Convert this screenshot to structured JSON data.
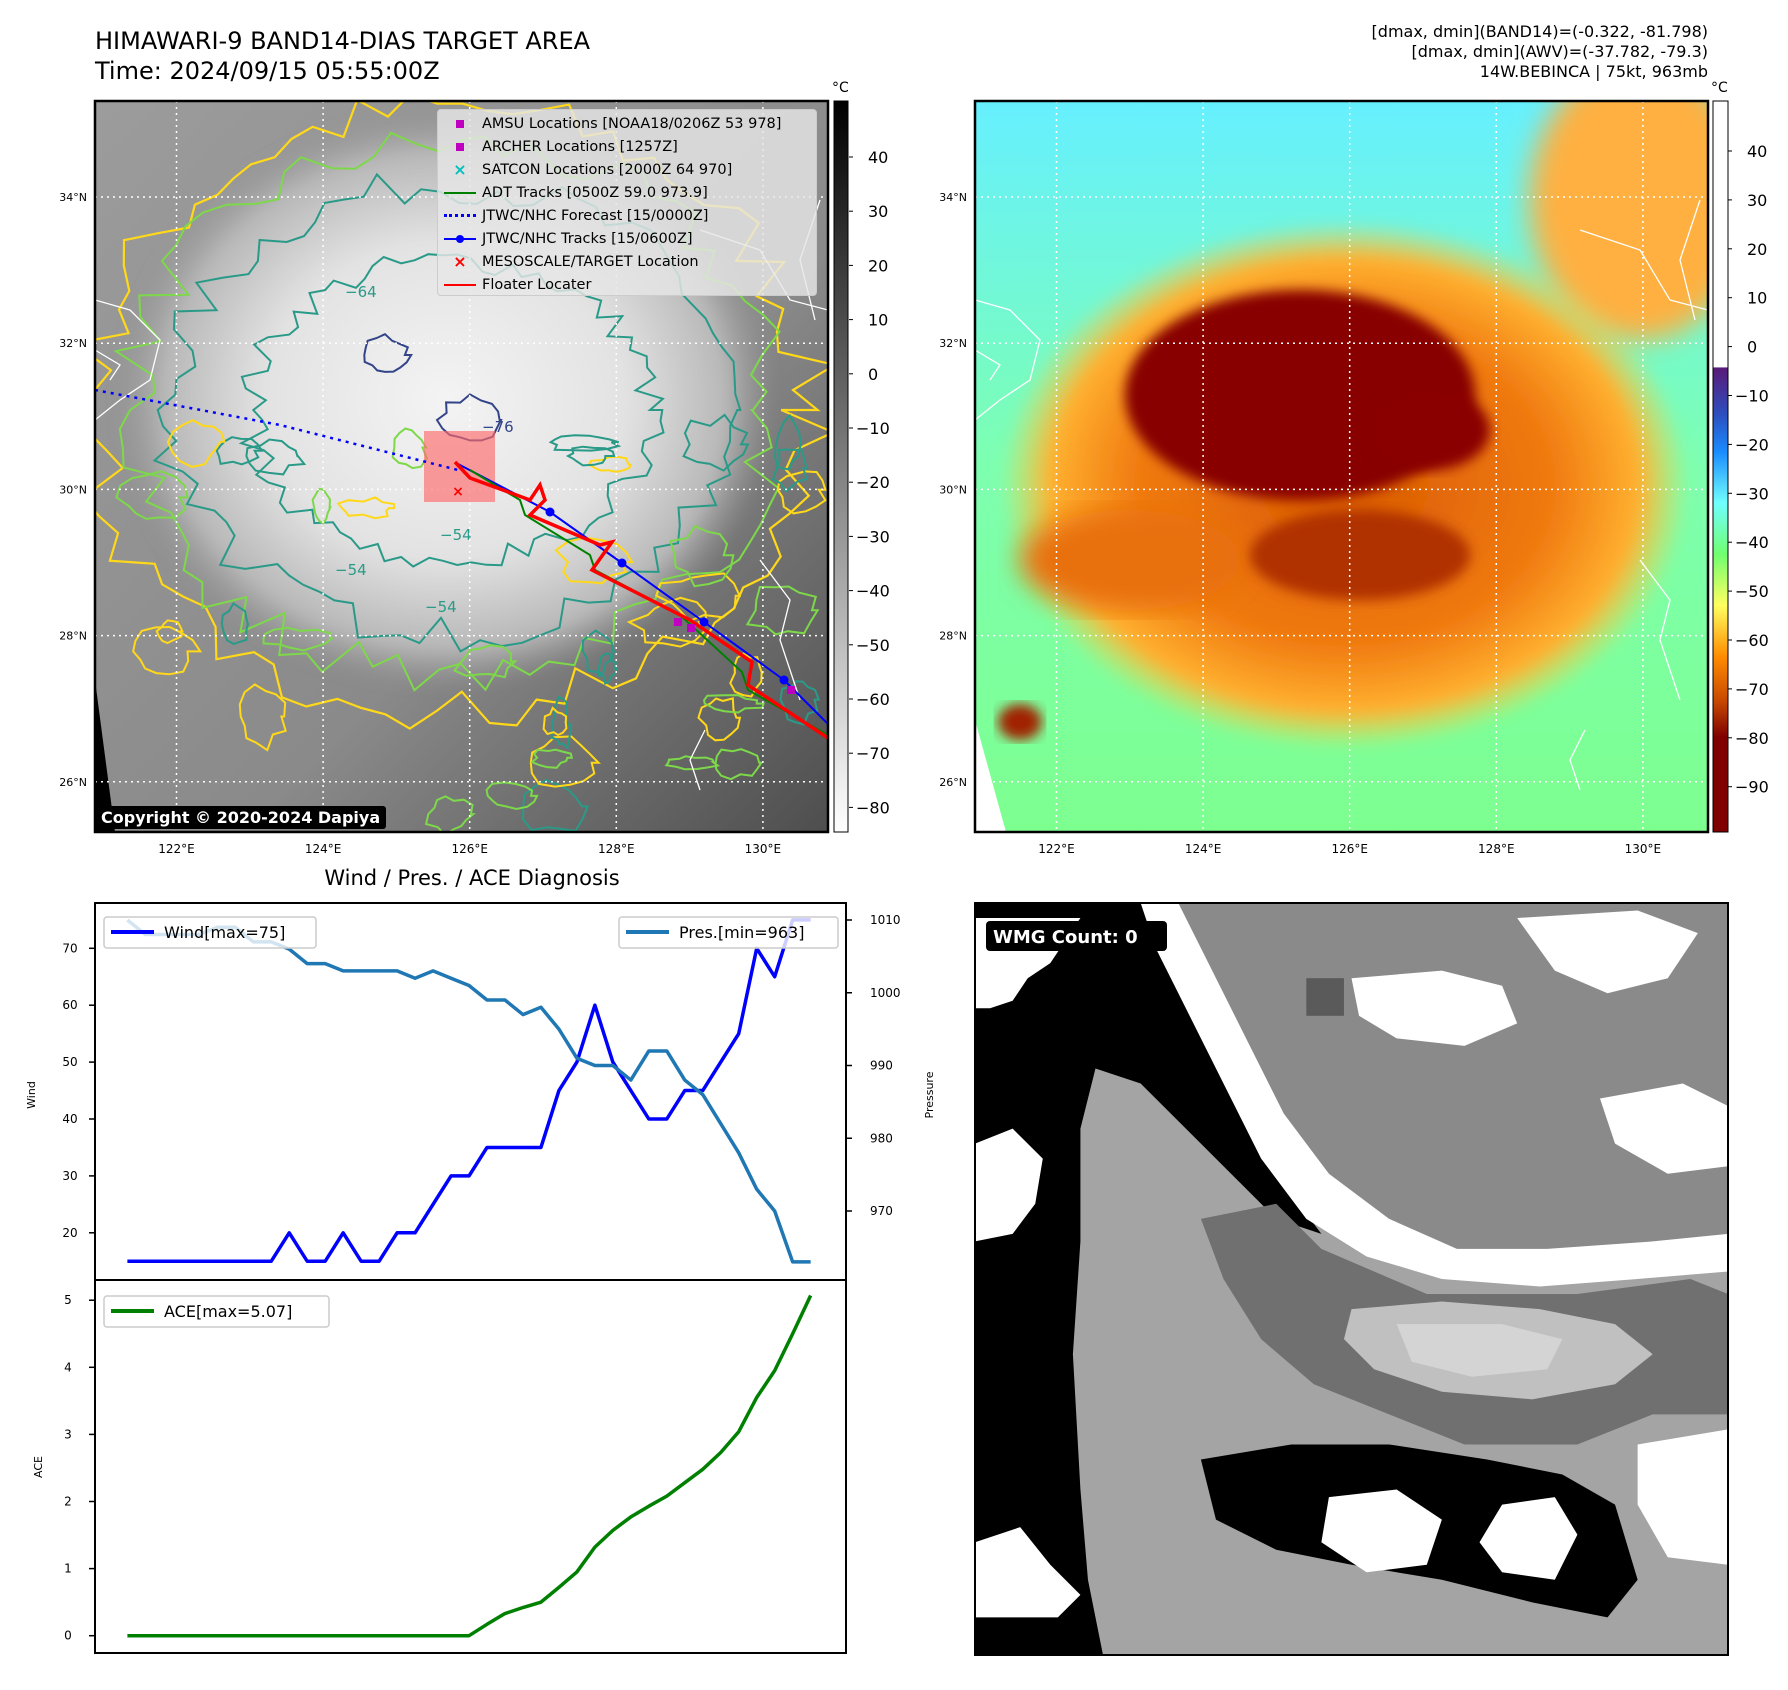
{
  "header": {
    "title": "HIMAWARI-9 BAND14-DIAS TARGET AREA",
    "time": "Time: 2024/09/15 05:55:00Z",
    "stats": [
      "[dmax, dmin](BAND14)=(-0.322, -81.798)",
      "[dmax, dmin](AWV)=(-37.782, -79.3)",
      "14W.BEBINCA | 75kt, 963mb"
    ]
  },
  "ir_panel": {
    "colorbar_unit": "°C",
    "colorbar_ticks": [
      "40",
      "30",
      "20",
      "10",
      "0",
      "−10",
      "−20",
      "−30",
      "−40",
      "−50",
      "−60",
      "−70",
      "−80"
    ],
    "colorbar_values": [
      40,
      30,
      20,
      10,
      0,
      -10,
      -20,
      -30,
      -40,
      -50,
      -60,
      -70,
      -80
    ],
    "lat_labels": [
      "34°N",
      "32°N",
      "30°N",
      "28°N",
      "26°N"
    ],
    "lon_labels": [
      "122°E",
      "124°E",
      "126°E",
      "128°E",
      "130°E"
    ],
    "contour_labels": [
      "−64",
      "−54",
      "−54",
      "−54",
      "−76"
    ],
    "copyright": "Copyright © 2020-2024 Dapiya",
    "legend": [
      {
        "label": "AMSU Locations [NOAA18/0206Z 53 978]",
        "key": "square",
        "color": "#c000c0"
      },
      {
        "label": "ARCHER Locations [1257Z]",
        "key": "square",
        "color": "#c000c0"
      },
      {
        "label": "SATCON Locations [2000Z 64 970]",
        "key": "x",
        "color": "#00bfbf"
      },
      {
        "label": "ADT Tracks [0500Z 59.0 973.9]",
        "key": "line",
        "color": "#008000"
      },
      {
        "label": "JTWC/NHC Forecast [15/0000Z]",
        "key": "dotted",
        "color": "#0000ff"
      },
      {
        "label": "JTWC/NHC Tracks [15/0600Z]",
        "key": "line-dot",
        "color": "#0000ff"
      },
      {
        "label": "MESOSCALE/TARGET Location",
        "key": "x",
        "color": "#ff0000"
      },
      {
        "label": "Floater Locater",
        "key": "line",
        "color": "#ff0000"
      }
    ]
  },
  "awv_panel": {
    "colorbar_unit": "°C",
    "colorbar_ticks": [
      "40",
      "30",
      "20",
      "10",
      "0",
      "−10",
      "−20",
      "−30",
      "−40",
      "−50",
      "−60",
      "−70",
      "−80",
      "−90"
    ],
    "colorbar_values": [
      40,
      30,
      20,
      10,
      0,
      -10,
      -20,
      -30,
      -40,
      -50,
      -60,
      -70,
      -80,
      -90
    ],
    "lat_labels": [
      "34°N",
      "32°N",
      "30°N",
      "28°N",
      "26°N"
    ],
    "lon_labels": [
      "122°E",
      "124°E",
      "126°E",
      "128°E",
      "130°E"
    ]
  },
  "wmg_panel": {
    "label": "WMG Count: 0"
  },
  "chart_data": [
    {
      "type": "line",
      "title": "Wind / Pres. / ACE Diagnosis",
      "ylabel": "Wind",
      "ylabel_right": "Pressure",
      "ylim": [
        13,
        77
      ],
      "ylim_right": [
        960,
        1012
      ],
      "yticks": [
        20,
        30,
        40,
        50,
        60,
        70
      ],
      "yticks_right": [
        970,
        980,
        990,
        1000,
        1010
      ],
      "series": [
        {
          "name": "Wind[max=75]",
          "color": "#0000ff",
          "axis": "left",
          "values": [
            15,
            15,
            15,
            15,
            15,
            15,
            15,
            15,
            15,
            20,
            15,
            15,
            20,
            15,
            15,
            20,
            20,
            25,
            30,
            30,
            35,
            35,
            35,
            35,
            45,
            50,
            60,
            50,
            45,
            40,
            40,
            45,
            45,
            50,
            55,
            70,
            65,
            75,
            75
          ]
        },
        {
          "name": "Pres.[min=963]",
          "color": "#1f77b4",
          "axis": "right",
          "values": [
            1010,
            1008,
            1008,
            1008,
            1008,
            1009,
            1009,
            1007,
            1007,
            1006,
            1004,
            1004,
            1003,
            1003,
            1003,
            1003,
            1002,
            1003,
            1002,
            1001,
            999,
            999,
            997,
            998,
            995,
            991,
            990,
            990,
            988,
            992,
            992,
            988,
            986,
            982,
            978,
            973,
            970,
            963,
            963
          ]
        }
      ]
    },
    {
      "type": "line",
      "ylabel": "ACE",
      "ylim": [
        -0.25,
        5.3
      ],
      "yticks": [
        0,
        1,
        2,
        3,
        4,
        5
      ],
      "series": [
        {
          "name": "ACE[max=5.07]",
          "color": "#008000",
          "values": [
            0,
            0,
            0,
            0,
            0,
            0,
            0,
            0,
            0,
            0,
            0,
            0,
            0,
            0,
            0,
            0,
            0,
            0,
            0,
            0,
            0.17,
            0.33,
            0.42,
            0.5,
            0.72,
            0.95,
            1.32,
            1.57,
            1.77,
            1.93,
            2.08,
            2.28,
            2.48,
            2.73,
            3.04,
            3.55,
            3.95,
            4.5,
            5.07
          ]
        }
      ]
    }
  ]
}
